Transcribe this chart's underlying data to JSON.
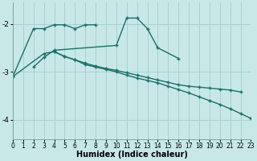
{
  "xlabel": "Humidex (Indice chaleur)",
  "bg_color": "#c8e8e8",
  "line_color": "#1a7068",
  "grid_color": "#a8d0d0",
  "xlim": [
    0,
    23
  ],
  "ylim": [
    -4.4,
    -1.55
  ],
  "yticks": [
    -4,
    -3,
    -2
  ],
  "xticks": [
    0,
    1,
    2,
    3,
    4,
    5,
    6,
    7,
    8,
    9,
    10,
    11,
    12,
    13,
    14,
    15,
    16,
    17,
    18,
    19,
    20,
    21,
    22,
    23
  ],
  "lines": [
    {
      "x": [
        0,
        2,
        3,
        4,
        5,
        6,
        7,
        8
      ],
      "y": [
        -3.1,
        -2.1,
        -2.1,
        -2.02,
        -2.02,
        -2.1,
        -2.02,
        -2.02
      ]
    },
    {
      "x": [
        2,
        3,
        4,
        10,
        11,
        12,
        13,
        14,
        16
      ],
      "y": [
        -2.9,
        -2.7,
        -2.55,
        -2.45,
        -1.88,
        -1.88,
        -2.1,
        -2.5,
        -2.72
      ]
    },
    {
      "x": [
        0,
        3,
        4,
        5,
        6,
        7,
        8,
        9,
        10,
        11,
        12,
        13,
        14,
        15,
        16,
        17,
        18,
        19,
        20,
        21,
        22
      ],
      "y": [
        -3.1,
        -2.62,
        -2.58,
        -2.68,
        -2.75,
        -2.82,
        -2.88,
        -2.93,
        -2.97,
        -3.02,
        -3.07,
        -3.12,
        -3.17,
        -3.22,
        -3.27,
        -3.3,
        -3.32,
        -3.34,
        -3.36,
        -3.38,
        -3.42
      ]
    },
    {
      "x": [
        4,
        5,
        6,
        7,
        8,
        9,
        10,
        11,
        12,
        13,
        14,
        15,
        16,
        17,
        18,
        19,
        20,
        21,
        22,
        23
      ],
      "y": [
        -2.58,
        -2.68,
        -2.75,
        -2.85,
        -2.9,
        -2.95,
        -3.0,
        -3.07,
        -3.13,
        -3.18,
        -3.23,
        -3.3,
        -3.37,
        -3.44,
        -3.52,
        -3.6,
        -3.68,
        -3.77,
        -3.87,
        -3.97
      ]
    }
  ]
}
